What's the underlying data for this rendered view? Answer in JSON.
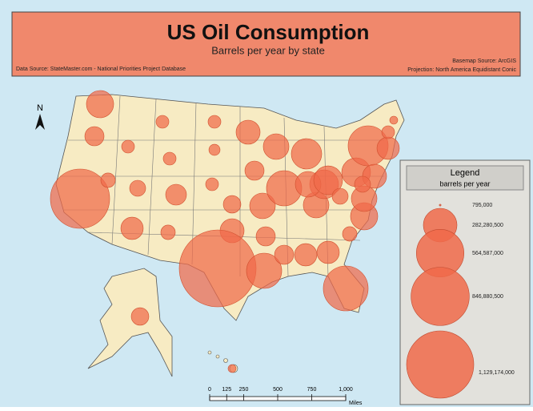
{
  "header": {
    "title": "US Oil Consumption",
    "subtitle": "Barrels per year by state",
    "data_source": "Data Source: StateMaster.com - National Priorities Project Database",
    "basemap_source": "Basemap Source: ArcGIS",
    "projection": "Projection: North America Equidistant Conic"
  },
  "map": {
    "north": "N",
    "bubble_values": [
      185000000,
      92000000,
      876000000,
      52000000,
      41000000,
      41000000,
      41000000,
      64000000,
      108000000,
      125000000,
      52000000,
      41000000,
      31000000,
      41000000,
      77000000,
      144000000,
      1475000000,
      144000000,
      92000000,
      164000000,
      92000000,
      310000000,
      164000000,
      310000000,
      92000000,
      125000000,
      164000000,
      207000000,
      164000000,
      231000000,
      207000000,
      125000000,
      502000000,
      52000000,
      185000000,
      164000000,
      64000000,
      207000000,
      400000000,
      144000000,
      64000000,
      125000000,
      41000000,
      16000000,
      77000000,
      16000000
    ]
  },
  "legend": {
    "title": "Legend",
    "subtitle": "barrels per year",
    "items": [
      {
        "value": 795000,
        "label": "795,000"
      },
      {
        "value": 282280500,
        "label": "282,280,500"
      },
      {
        "value": 564587000,
        "label": "564,587,000"
      },
      {
        "value": 846880500,
        "label": "846,880,500"
      },
      {
        "value": 1129174000,
        "label": "1,129,174,000"
      }
    ]
  },
  "scale": {
    "ticks": [
      0,
      125,
      250,
      500,
      750,
      {
        "value": 1000,
        "label": "1,000"
      }
    ],
    "unit": "Miles"
  }
}
